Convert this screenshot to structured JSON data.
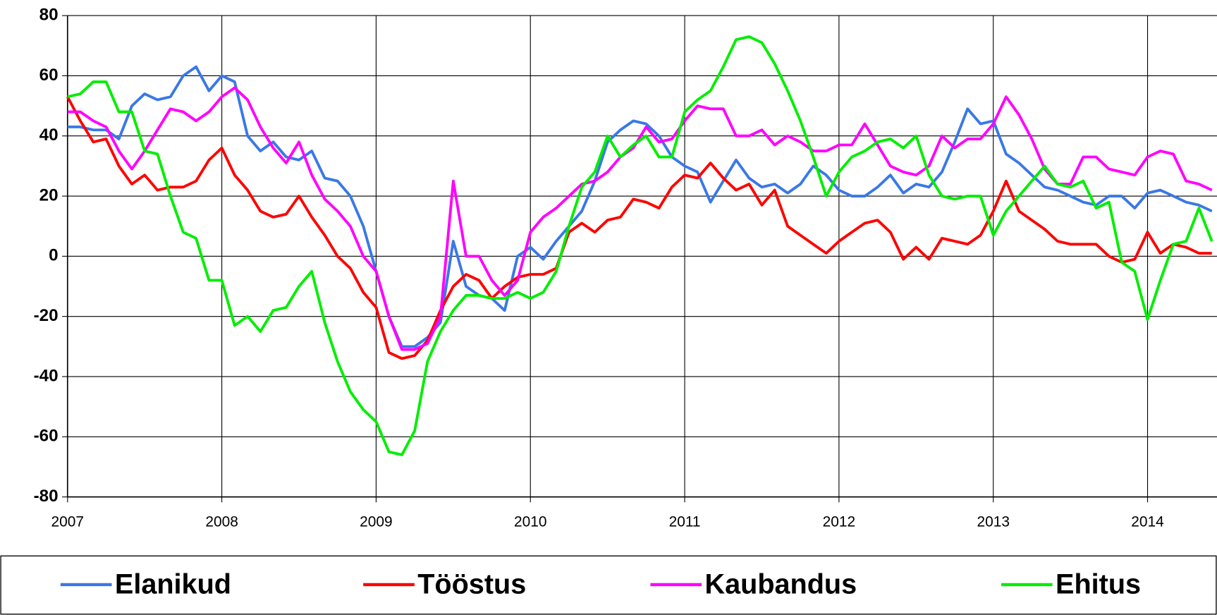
{
  "chart_data": {
    "type": "line",
    "x": [
      2007,
      2007.083,
      2007.167,
      2007.25,
      2007.333,
      2007.417,
      2007.5,
      2007.583,
      2007.667,
      2007.75,
      2007.833,
      2007.917,
      2008,
      2008.083,
      2008.167,
      2008.25,
      2008.333,
      2008.417,
      2008.5,
      2008.583,
      2008.667,
      2008.75,
      2008.833,
      2008.917,
      2009,
      2009.083,
      2009.167,
      2009.25,
      2009.333,
      2009.417,
      2009.5,
      2009.583,
      2009.667,
      2009.75,
      2009.833,
      2009.917,
      2010,
      2010.083,
      2010.167,
      2010.25,
      2010.333,
      2010.417,
      2010.5,
      2010.583,
      2010.667,
      2010.75,
      2010.833,
      2010.917,
      2011,
      2011.083,
      2011.167,
      2011.25,
      2011.333,
      2011.417,
      2011.5,
      2011.583,
      2011.667,
      2011.75,
      2011.833,
      2011.917,
      2012,
      2012.083,
      2012.167,
      2012.25,
      2012.333,
      2012.417,
      2012.5,
      2012.583,
      2012.667,
      2012.75,
      2012.833,
      2012.917,
      2013,
      2013.083,
      2013.167,
      2013.25,
      2013.333,
      2013.417,
      2013.5,
      2013.583,
      2013.667,
      2013.75,
      2013.833,
      2013.917,
      2014,
      2014.083,
      2014.167,
      2014.25,
      2014.333,
      2014.417
    ],
    "series": [
      {
        "name": "Elanikud",
        "color": "#3a78e6",
        "values": [
          43,
          43,
          42,
          42,
          39,
          50,
          54,
          52,
          53,
          60,
          63,
          55,
          60,
          58,
          40,
          35,
          38,
          33,
          32,
          35,
          26,
          25,
          20,
          10,
          -5,
          -20,
          -30,
          -30,
          -27,
          -22,
          5,
          -10,
          -13,
          -14,
          -18,
          0,
          3,
          -1,
          5,
          10,
          15,
          25,
          38,
          42,
          45,
          44,
          40,
          33,
          30,
          28,
          18,
          25,
          32,
          26,
          23,
          24,
          21,
          24,
          30,
          27,
          22,
          20,
          20,
          23,
          27,
          21,
          24,
          23,
          28,
          38,
          49,
          44,
          45,
          34,
          31,
          27,
          23,
          22,
          20,
          18,
          17,
          20,
          20,
          16,
          21,
          22,
          20,
          18,
          17,
          15
        ]
      },
      {
        "name": "Tööstus",
        "color": "#ff0000",
        "values": [
          53,
          45,
          38,
          39,
          30,
          24,
          27,
          22,
          23,
          23,
          25,
          32,
          36,
          27,
          22,
          15,
          13,
          14,
          20,
          13,
          7,
          0,
          -4,
          -12,
          -17,
          -32,
          -34,
          -33,
          -28,
          -18,
          -10,
          -6,
          -8,
          -14,
          -10,
          -7,
          -6,
          -6,
          -4,
          8,
          11,
          8,
          12,
          13,
          19,
          18,
          16,
          23,
          27,
          26,
          31,
          26,
          22,
          24,
          17,
          22,
          10,
          7,
          4,
          1,
          5,
          8,
          11,
          12,
          8,
          -1,
          3,
          -1,
          6,
          5,
          4,
          7,
          15,
          25,
          15,
          12,
          9,
          5,
          4,
          4,
          4,
          0,
          -2,
          -1,
          8,
          1,
          4,
          3,
          1,
          1
        ]
      },
      {
        "name": "Kaubandus",
        "color": "#ff00ff",
        "values": [
          48,
          48,
          45,
          43,
          35,
          29,
          35,
          42,
          49,
          48,
          45,
          48,
          53,
          56,
          52,
          43,
          36,
          31,
          38,
          27,
          19,
          15,
          10,
          0,
          -5,
          -20,
          -31,
          -31,
          -29,
          -20,
          25,
          0,
          0,
          -8,
          -13,
          -8,
          8,
          13,
          16,
          20,
          24,
          25,
          28,
          33,
          36,
          43,
          38,
          39,
          45,
          50,
          49,
          49,
          40,
          40,
          42,
          37,
          40,
          38,
          35,
          35,
          37,
          37,
          44,
          37,
          30,
          28,
          27,
          30,
          40,
          36,
          39,
          39,
          44,
          53,
          47,
          39,
          29,
          24,
          24,
          33,
          33,
          29,
          28,
          27,
          33,
          35,
          34,
          25,
          24,
          22
        ]
      },
      {
        "name": "Ehitus",
        "color": "#00ee00",
        "values": [
          53,
          54,
          58,
          58,
          48,
          48,
          35,
          34,
          20,
          8,
          6,
          -8,
          -8,
          -23,
          -20,
          -25,
          -18,
          -17,
          -10,
          -5,
          -22,
          -35,
          -45,
          -51,
          -55,
          -65,
          -66,
          -58,
          -35,
          -25,
          -18,
          -13,
          -13,
          -14,
          -14,
          -12,
          -14,
          -12,
          -5,
          10,
          23,
          28,
          40,
          33,
          37,
          40,
          33,
          33,
          48,
          52,
          55,
          63,
          72,
          73,
          71,
          64,
          55,
          45,
          33,
          20,
          28,
          33,
          35,
          38,
          39,
          36,
          40,
          27,
          20,
          19,
          20,
          20,
          7,
          15,
          20,
          25,
          30,
          24,
          23,
          25,
          16,
          18,
          -2,
          -5,
          -21,
          -8,
          4,
          5,
          16,
          5
        ]
      }
    ],
    "xlim": [
      2007,
      2014.45
    ],
    "xticks": [
      2007,
      2008,
      2009,
      2010,
      2011,
      2012,
      2013,
      2014
    ],
    "ylim": [
      -80,
      80
    ],
    "yticks": [
      -80,
      -60,
      -40,
      -20,
      0,
      20,
      40,
      60,
      80
    ],
    "grid": true,
    "legend": "bottom"
  }
}
